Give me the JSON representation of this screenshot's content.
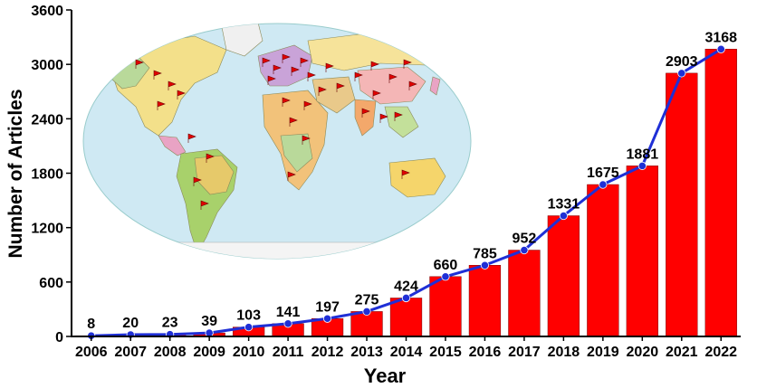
{
  "chart_data": {
    "type": "bar",
    "title": "",
    "xlabel": "Year",
    "ylabel": "Number of Articles",
    "categories": [
      "2006",
      "2007",
      "2008",
      "2009",
      "2010",
      "2011",
      "2012",
      "2013",
      "2014",
      "2015",
      "2016",
      "2017",
      "2018",
      "2019",
      "2020",
      "2021",
      "2022"
    ],
    "values": [
      8,
      20,
      23,
      39,
      103,
      141,
      197,
      275,
      424,
      660,
      785,
      952,
      1331,
      1675,
      1881,
      2903,
      3168
    ],
    "overlay": "line-with-markers",
    "yticks": [
      0,
      600,
      1200,
      1800,
      2400,
      3000,
      3600
    ],
    "ylim": [
      0,
      3600
    ],
    "grid": false,
    "colors": {
      "bar": "#ff0000",
      "line": "#1f2fd6",
      "marker": "#1f2fd6"
    },
    "inset": "world-map"
  }
}
